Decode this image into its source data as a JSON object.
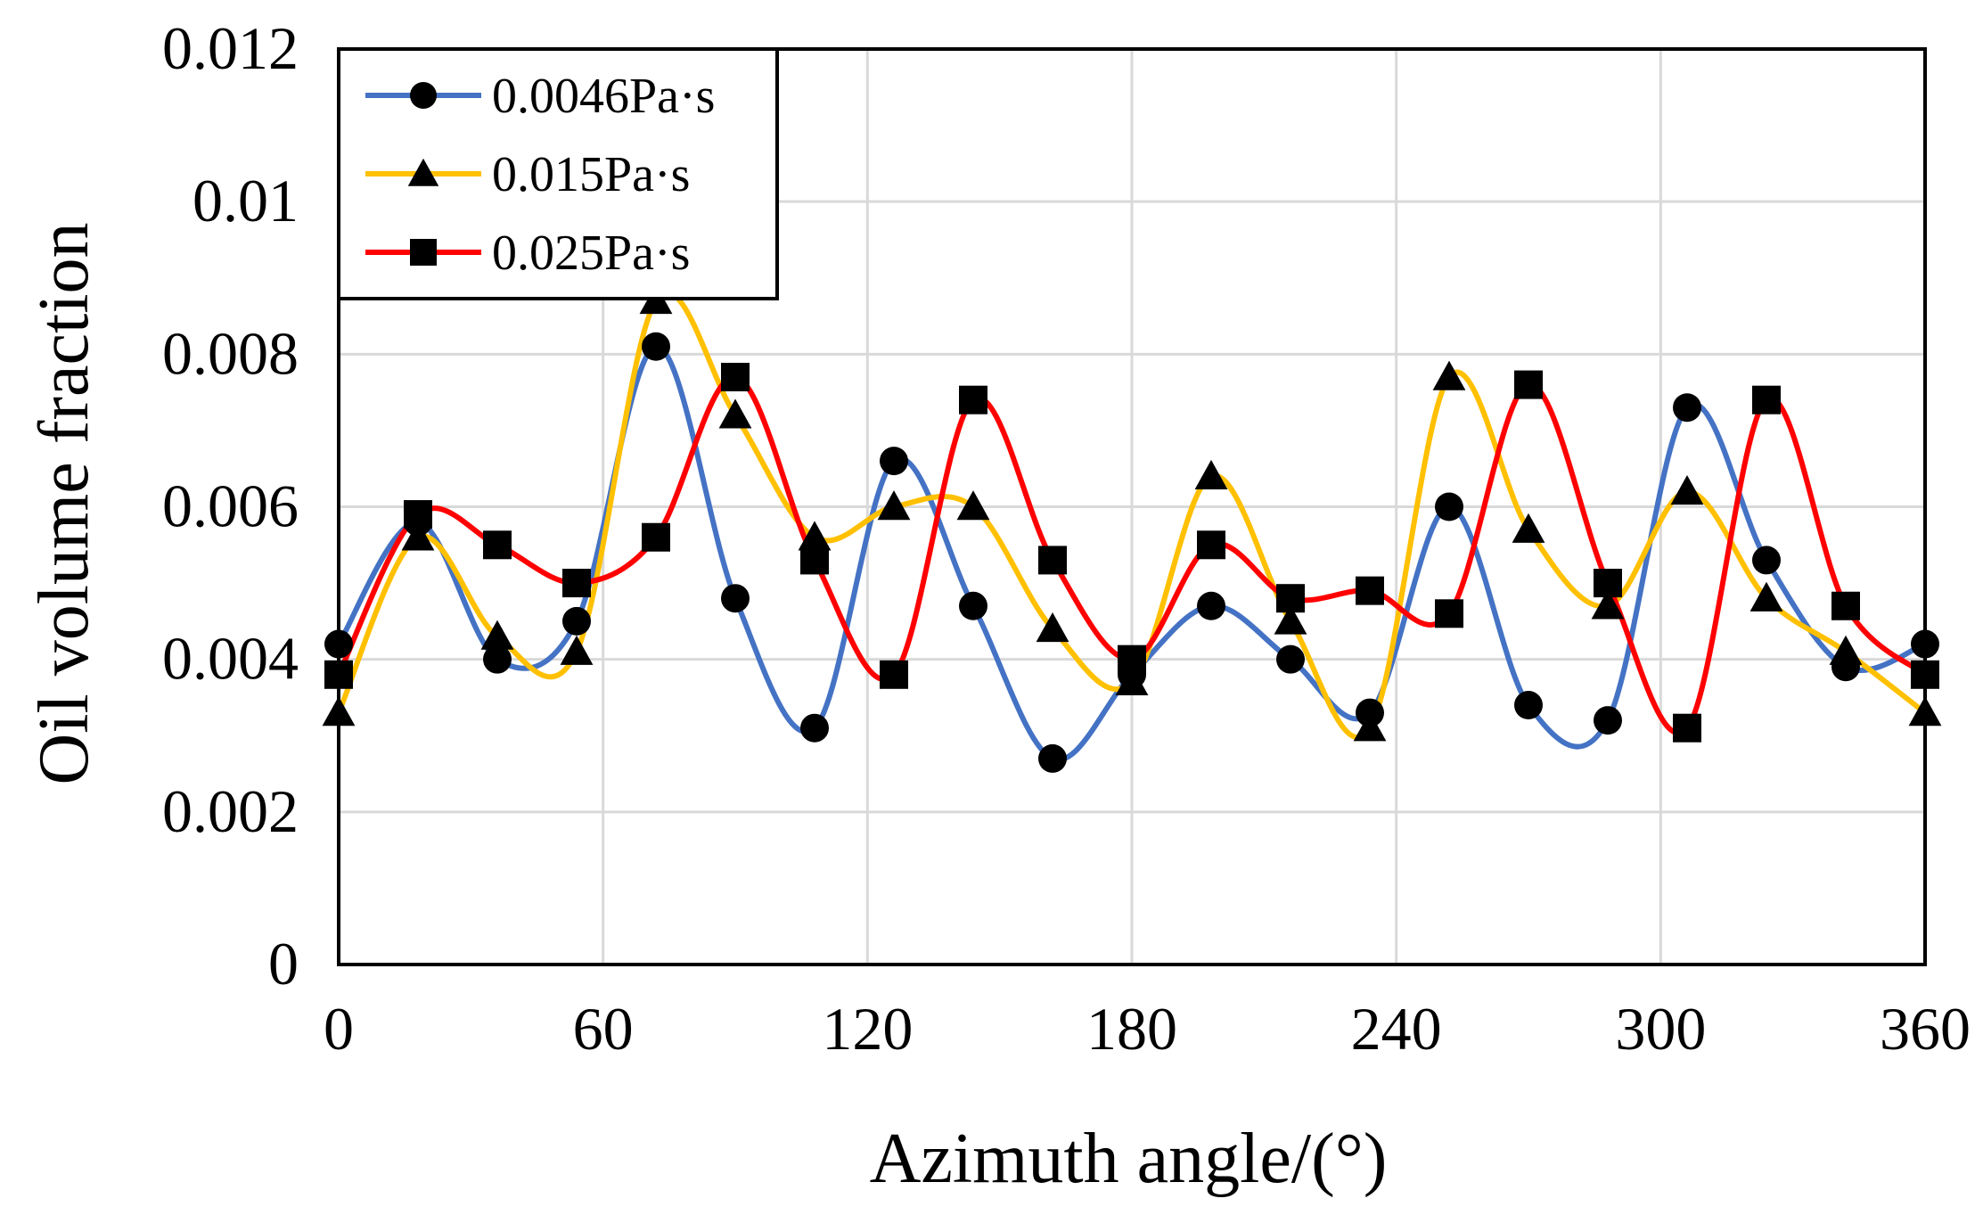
{
  "chart_data": {
    "type": "line",
    "title": "",
    "xlabel": "Azimuth angle/(°)",
    "ylabel": "Oil volume fraction",
    "xlim": [
      0,
      360
    ],
    "ylim": [
      0,
      0.012
    ],
    "xticks": [
      0,
      60,
      120,
      180,
      240,
      300,
      360
    ],
    "yticks": [
      0,
      0.002,
      0.004,
      0.006,
      0.008,
      0.01,
      0.012
    ],
    "xtick_labels": [
      "0",
      "60",
      "120",
      "180",
      "240",
      "300",
      "360"
    ],
    "ytick_labels": [
      "0",
      "0.002",
      "0.004",
      "0.006",
      "0.008",
      "0.01",
      "0.012"
    ],
    "grid": true,
    "smooth": true,
    "legend_position": "top-left",
    "x": [
      0,
      18,
      36,
      54,
      72,
      90,
      108,
      126,
      144,
      162,
      180,
      198,
      216,
      234,
      252,
      270,
      288,
      306,
      324,
      342,
      360
    ],
    "series": [
      {
        "name": "0.0046Pa·s",
        "color": "#4472C4",
        "marker": "circle",
        "values": [
          0.0042,
          0.0058,
          0.004,
          0.0045,
          0.0081,
          0.0048,
          0.0031,
          0.0066,
          0.0047,
          0.0027,
          0.0038,
          0.0047,
          0.004,
          0.0033,
          0.006,
          0.0034,
          0.0032,
          0.0073,
          0.0053,
          0.0039,
          0.0042
        ]
      },
      {
        "name": "0.015Pa·s",
        "color": "#FFC000",
        "marker": "triangle",
        "values": [
          0.0033,
          0.0056,
          0.0043,
          0.0041,
          0.0087,
          0.0072,
          0.0056,
          0.006,
          0.006,
          0.0044,
          0.0037,
          0.0064,
          0.0045,
          0.0031,
          0.0077,
          0.0057,
          0.0047,
          0.0062,
          0.0048,
          0.0041,
          0.0033
        ]
      },
      {
        "name": "0.025Pa·s",
        "color": "#FF0000",
        "marker": "square",
        "values": [
          0.0038,
          0.0059,
          0.0055,
          0.005,
          0.0056,
          0.0077,
          0.0053,
          0.0038,
          0.0074,
          0.0053,
          0.004,
          0.0055,
          0.0048,
          0.0049,
          0.0046,
          0.0076,
          0.005,
          0.0031,
          0.0074,
          0.0047,
          0.0038
        ]
      }
    ]
  }
}
